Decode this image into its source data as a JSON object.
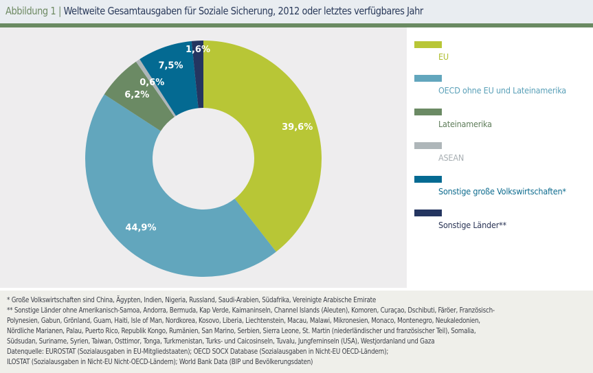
{
  "header": {
    "figure_label": "Abbildung 1",
    "separator": "|",
    "title": "Weltweite Gesamtausgaben für Soziale Sicherung, 2012 oder letztes verfügbares Jahr"
  },
  "chart_data": {
    "type": "pie",
    "variant": "donut",
    "title": "Weltweite Gesamtausgaben für Soziale Sicherung, 2012 oder letztes verfügbares Jahr",
    "start": "top, clockwise",
    "legend_position": "right",
    "slices": [
      {
        "name": "EU",
        "value": 39.6,
        "label": "39,6%",
        "color": "#b8c636"
      },
      {
        "name": "OECD ohne EU und Lateinamerika",
        "value": 44.9,
        "label": "44,9%",
        "color": "#62a6bd"
      },
      {
        "name": "Lateinamerika",
        "value": 6.2,
        "label": "6,2%",
        "color": "#6b8a64"
      },
      {
        "name": "ASEAN",
        "value": 0.6,
        "label": "0,6%",
        "color": "#aeb6b9"
      },
      {
        "name": "Sonstige große Volkswirtschaften*",
        "value": 7.5,
        "label": "7,5%",
        "color": "#046a92"
      },
      {
        "name": "Sonstige Länder**",
        "value": 1.6,
        "label": "1,6%",
        "color": "#243560"
      }
    ]
  },
  "legend": {
    "items": [
      {
        "label": "EU",
        "color": "#b8c636",
        "text_color": "#aebd2e"
      },
      {
        "label": "OECD ohne EU und Lateinamerika",
        "color": "#62a6bd",
        "text_color": "#5aa0b8"
      },
      {
        "label": "Lateinamerika",
        "color": "#6b8a64",
        "text_color": "#5f7d5a"
      },
      {
        "label": "ASEAN",
        "color": "#aeb6b9",
        "text_color": "#a7aeb2"
      },
      {
        "label": "Sonstige große Volkswirtschaften*",
        "color": "#046a92",
        "text_color": "#0d6b8e"
      },
      {
        "label": "Sonstige Länder**",
        "color": "#243560",
        "text_color": "#2b3556"
      }
    ]
  },
  "footnotes": {
    "lines": [
      "* Große Volkswirtschaften sind China, Ägypten, Indien, Nigeria, Russland, Saudi-Arabien, Südafrika, Vereinigte Arabische Emirate",
      "** Sonstige Länder ohne Amerikanisch-Samoa, Andorra, Bermuda, Kap Verde, Kaimaninseln, Channel Islands (Aleuten), Komoren, Curaçao, Dschibuti, Färöer, Französisch-",
      "Polynesien, Gabun, Grönland, Guam, Haiti, Isle of Man, Nordkorea, Kosovo, Liberia, Liechtenstein, Macau, Malawi, Mikronesien, Monaco, Montenegro, Neukaledonien,",
      "Nördliche Marianen, Palau, Puerto Rico, Republik Kongo, Rumänien, San Marino, Serbien, Sierra Leone, St. Martin (niederländischer und französischer Teil), Somalia,",
      "Südsudan, Suriname, Syrien, Taiwan, Osttimor, Tonga, Turkmenistan, Turks- und Caicosinseln, Tuvalu, Jungferninseln (USA), Westjordanland und Gaza",
      "Datenquelle: EUROSTAT (Sozialausgaben in EU-Mitgliedstaaten); OECD SOCX Database (Sozialausgaben in Nicht-EU OECD-Ländern);",
      "ILOSTAT (Sozialausgaben in Nicht-EU Nicht-OECD-Ländern); World Bank Data (BIP und Bevölkerungsdaten)"
    ]
  }
}
